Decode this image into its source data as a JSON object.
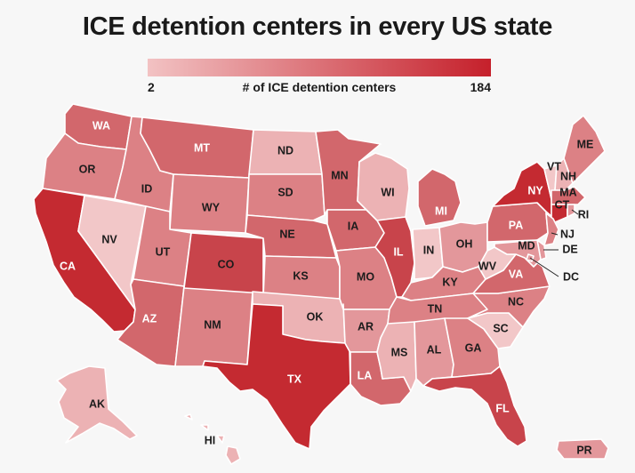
{
  "title": "ICE detention centers in every US state",
  "legend": {
    "min": "2",
    "max": "184",
    "label": "# of ICE detention centers",
    "color_low": "#f2c2c3",
    "color_high": "#c5202b"
  },
  "colors": {
    "c1": "#f2c7c8",
    "c2": "#ecb2b4",
    "c3": "#e3979b",
    "c4": "#dc8185",
    "c5": "#d2676c",
    "c6": "#c8444b",
    "c7": "#c42a31"
  },
  "states": [
    {
      "abbr": "WA",
      "level": "c5"
    },
    {
      "abbr": "OR",
      "level": "c4"
    },
    {
      "abbr": "CA",
      "level": "c7"
    },
    {
      "abbr": "NV",
      "level": "c1"
    },
    {
      "abbr": "ID",
      "level": "c4"
    },
    {
      "abbr": "MT",
      "level": "c5"
    },
    {
      "abbr": "WY",
      "level": "c4"
    },
    {
      "abbr": "UT",
      "level": "c4"
    },
    {
      "abbr": "AZ",
      "level": "c5"
    },
    {
      "abbr": "NM",
      "level": "c4"
    },
    {
      "abbr": "CO",
      "level": "c6"
    },
    {
      "abbr": "ND",
      "level": "c2"
    },
    {
      "abbr": "SD",
      "level": "c4"
    },
    {
      "abbr": "NE",
      "level": "c5"
    },
    {
      "abbr": "KS",
      "level": "c4"
    },
    {
      "abbr": "OK",
      "level": "c2"
    },
    {
      "abbr": "TX",
      "level": "c7"
    },
    {
      "abbr": "MN",
      "level": "c5"
    },
    {
      "abbr": "IA",
      "level": "c5"
    },
    {
      "abbr": "MO",
      "level": "c4"
    },
    {
      "abbr": "AR",
      "level": "c3"
    },
    {
      "abbr": "LA",
      "level": "c5"
    },
    {
      "abbr": "WI",
      "level": "c2"
    },
    {
      "abbr": "IL",
      "level": "c6"
    },
    {
      "abbr": "MI",
      "level": "c5"
    },
    {
      "abbr": "IN",
      "level": "c1"
    },
    {
      "abbr": "OH",
      "level": "c3"
    },
    {
      "abbr": "KY",
      "level": "c4"
    },
    {
      "abbr": "TN",
      "level": "c4"
    },
    {
      "abbr": "MS",
      "level": "c2"
    },
    {
      "abbr": "AL",
      "level": "c3"
    },
    {
      "abbr": "GA",
      "level": "c4"
    },
    {
      "abbr": "FL",
      "level": "c6"
    },
    {
      "abbr": "SC",
      "level": "c1"
    },
    {
      "abbr": "NC",
      "level": "c4"
    },
    {
      "abbr": "VA",
      "level": "c5"
    },
    {
      "abbr": "WV",
      "level": "c1"
    },
    {
      "abbr": "PA",
      "level": "c5"
    },
    {
      "abbr": "NY",
      "level": "c7"
    },
    {
      "abbr": "VT",
      "level": "c1"
    },
    {
      "abbr": "NH",
      "level": "c2"
    },
    {
      "abbr": "ME",
      "level": "c4"
    },
    {
      "abbr": "MA",
      "level": "c5"
    },
    {
      "abbr": "CT",
      "level": "c7"
    },
    {
      "abbr": "RI",
      "level": "c3"
    },
    {
      "abbr": "NJ",
      "level": "c4"
    },
    {
      "abbr": "DE",
      "level": "c3"
    },
    {
      "abbr": "MD",
      "level": "c3"
    },
    {
      "abbr": "DC",
      "level": "c3"
    },
    {
      "abbr": "AK",
      "level": "c2"
    },
    {
      "abbr": "HI",
      "level": "c2"
    },
    {
      "abbr": "PR",
      "level": "c3"
    }
  ]
}
